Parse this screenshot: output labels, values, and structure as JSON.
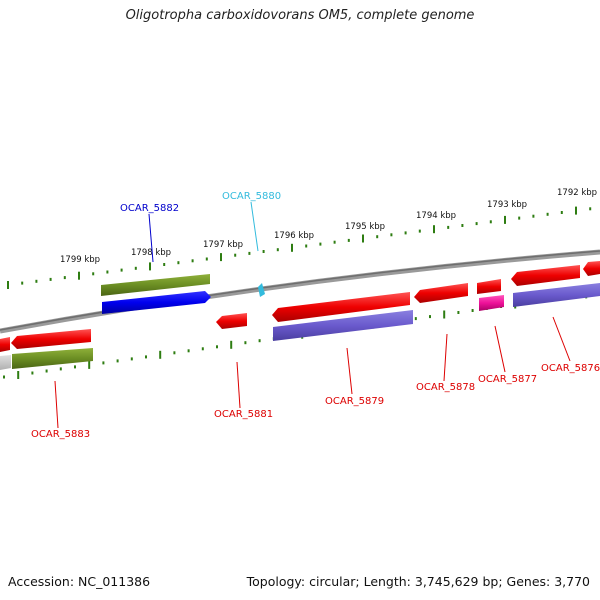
{
  "title": "Oligotropha carboxidovorans OM5, complete genome",
  "footer": {
    "accession": "Accession: NC_011386",
    "topology": "Topology: circular; Length: 3,745,629 bp; Genes: 3,770"
  },
  "ticks": [
    {
      "label": "1799 kbp"
    },
    {
      "label": "1798 kbp"
    },
    {
      "label": "1797 kbp"
    },
    {
      "label": "1796 kbp"
    },
    {
      "label": "1795 kbp"
    },
    {
      "label": "1794 kbp"
    },
    {
      "label": "1793 kbp"
    },
    {
      "label": "1792 kbp"
    }
  ],
  "gene_labels": [
    {
      "text": "OCAR_5882",
      "color": "#0000cc"
    },
    {
      "text": "OCAR_5880",
      "color": "#33bbdd"
    },
    {
      "text": "OCAR_5883",
      "color": "#dd0000"
    },
    {
      "text": "OCAR_5881",
      "color": "#dd0000"
    },
    {
      "text": "OCAR_5879",
      "color": "#dd0000"
    },
    {
      "text": "OCAR_5878",
      "color": "#dd0000"
    },
    {
      "text": "OCAR_5877",
      "color": "#dd0000"
    },
    {
      "text": "OCAR_5876",
      "color": "#dd0000"
    }
  ],
  "colors": {
    "backbone": "#808080",
    "tick": "#2e7d12",
    "cds": "#ee0000",
    "olive": "#6b8e23",
    "blue": "#0000ee",
    "purple": "#6a5acd",
    "magenta": "#ee1199",
    "cyan": "#33bbdd"
  }
}
